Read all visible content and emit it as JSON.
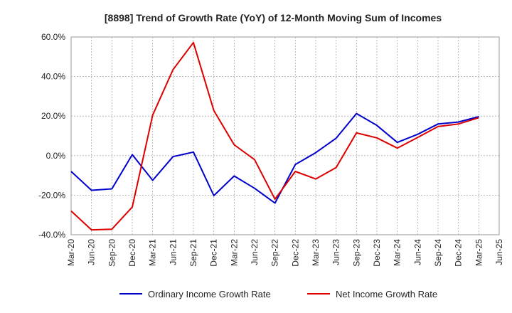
{
  "chart_data": {
    "type": "line",
    "title": "[8898]  Trend of Growth Rate (YoY) of 12-Month Moving Sum of Incomes",
    "xlabel": "",
    "ylabel": "",
    "categories": [
      "Mar-20",
      "Jun-20",
      "Sep-20",
      "Dec-20",
      "Mar-21",
      "Jun-21",
      "Sep-21",
      "Dec-21",
      "Mar-22",
      "Jun-22",
      "Sep-22",
      "Dec-22",
      "Mar-23",
      "Jun-23",
      "Sep-23",
      "Dec-23",
      "Mar-24",
      "Jun-24",
      "Sep-24",
      "Dec-24",
      "Mar-25",
      "Jun-25"
    ],
    "y_ticks": [
      "60.0%",
      "40.0%",
      "20.0%",
      "0.0%",
      "-20.0%",
      "-40.0%"
    ],
    "ylim": [
      -40,
      60
    ],
    "grid": true,
    "legend_position": "bottom",
    "series": [
      {
        "name": "Ordinary Income Growth Rate",
        "color": "#0000cc",
        "values": [
          -8.0,
          -17.5,
          -16.8,
          0.5,
          -12.5,
          -0.5,
          1.8,
          -20.2,
          -10.3,
          -16.5,
          -24.0,
          -4.5,
          1.5,
          8.8,
          21.3,
          15.3,
          6.7,
          10.8,
          16.0,
          17.0,
          19.7,
          null
        ]
      },
      {
        "name": "Net Income Growth Rate",
        "color": "#dd0000",
        "values": [
          -28.0,
          -37.5,
          -37.2,
          -26.0,
          20.5,
          43.5,
          57.2,
          22.8,
          5.5,
          -2.0,
          -22.0,
          -8.0,
          -11.8,
          -6.0,
          11.5,
          9.0,
          3.8,
          9.2,
          14.7,
          16.0,
          19.2,
          null
        ]
      }
    ]
  }
}
